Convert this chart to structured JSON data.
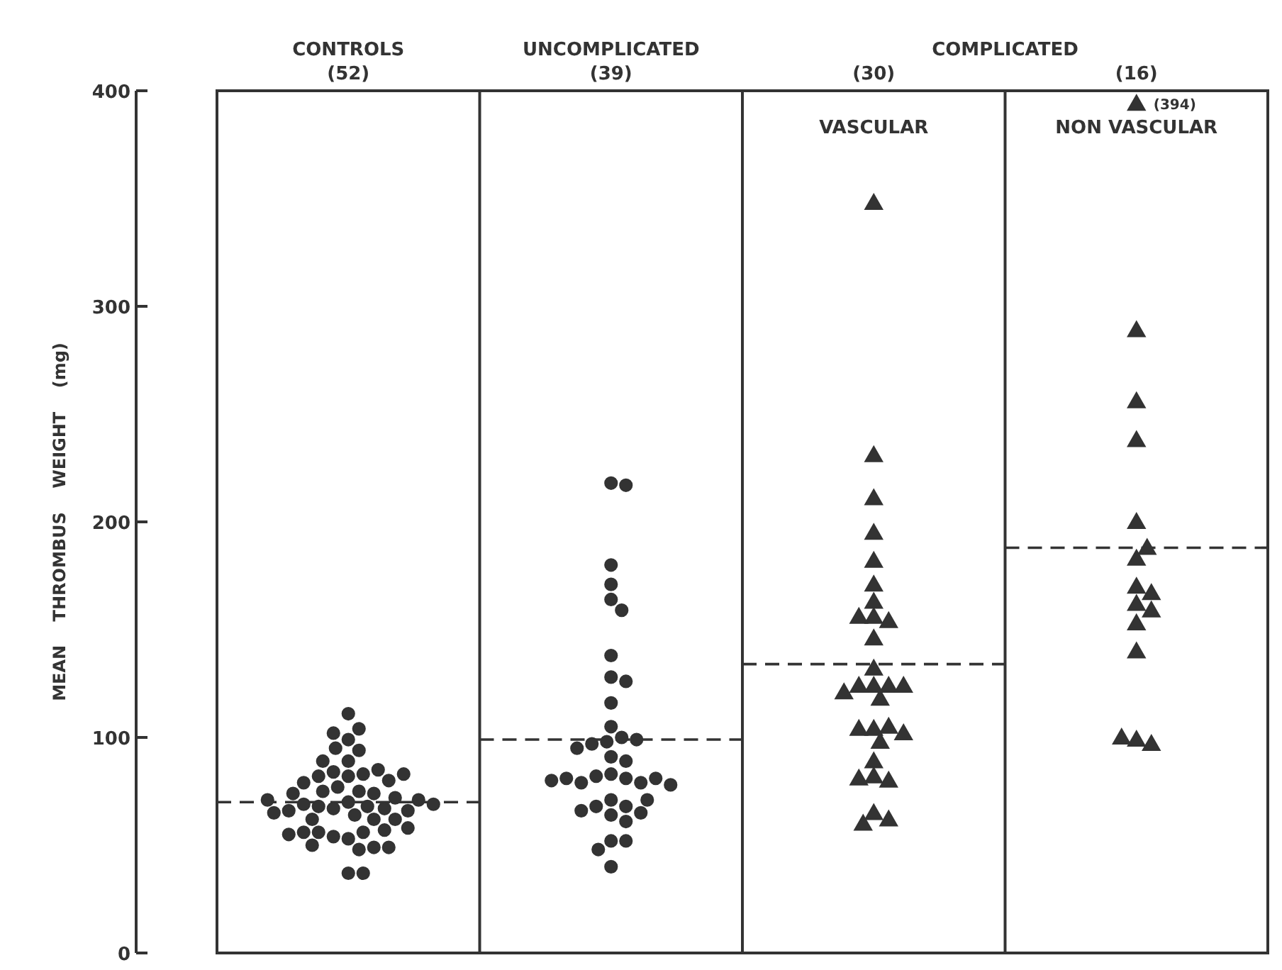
{
  "chart_data": {
    "type": "scatter",
    "categories": [
      "CONTROLS\n(52)",
      "UNCOMPLICATED\n(39)",
      "(30)",
      "(16)"
    ],
    "ylabel": "MEAN    THROMBUS    WEIGHT    (mg)",
    "ylim": [
      0,
      400
    ],
    "yticks": [
      0,
      100,
      200,
      300,
      400
    ],
    "grid": false,
    "annotations": [
      "COMPLICATED",
      "VASCULAR",
      "NON VASCULAR"
    ],
    "ref_lines": [
      {
        "axis": "y",
        "value": 70,
        "line_style": "dashed"
      },
      {
        "axis": "y",
        "value": 99,
        "line_style": "dashed"
      },
      {
        "axis": "y",
        "value": 134,
        "line_style": "dashed"
      },
      {
        "axis": "y",
        "value": 188,
        "line_style": "dashed"
      }
    ],
    "series": [
      {
        "color": "#333333",
        "marker": "circle",
        "x": [
          "CONTROLS\n(52)",
          "CONTROLS\n(52)",
          "CONTROLS\n(52)",
          "CONTROLS\n(52)",
          "CONTROLS\n(52)",
          "CONTROLS\n(52)",
          "CONTROLS\n(52)",
          "CONTROLS\n(52)",
          "CONTROLS\n(52)",
          "CONTROLS\n(52)",
          "CONTROLS\n(52)",
          "CONTROLS\n(52)",
          "CONTROLS\n(52)",
          "CONTROLS\n(52)",
          "CONTROLS\n(52)",
          "CONTROLS\n(52)",
          "CONTROLS\n(52)",
          "CONTROLS\n(52)",
          "CONTROLS\n(52)",
          "CONTROLS\n(52)",
          "CONTROLS\n(52)",
          "CONTROLS\n(52)",
          "CONTROLS\n(52)",
          "CONTROLS\n(52)",
          "CONTROLS\n(52)",
          "CONTROLS\n(52)",
          "CONTROLS\n(52)",
          "CONTROLS\n(52)",
          "CONTROLS\n(52)",
          "CONTROLS\n(52)",
          "CONTROLS\n(52)",
          "CONTROLS\n(52)",
          "CONTROLS\n(52)",
          "CONTROLS\n(52)",
          "CONTROLS\n(52)",
          "CONTROLS\n(52)",
          "CONTROLS\n(52)",
          "CONTROLS\n(52)",
          "CONTROLS\n(52)",
          "CONTROLS\n(52)",
          "CONTROLS\n(52)",
          "CONTROLS\n(52)",
          "CONTROLS\n(52)",
          "CONTROLS\n(52)",
          "CONTROLS\n(52)",
          "CONTROLS\n(52)",
          "CONTROLS\n(52)",
          "CONTROLS\n(52)",
          "CONTROLS\n(52)",
          "CONTROLS\n(52)",
          "CONTROLS\n(52)",
          "CONTROLS\n(52)"
        ],
        "values": [
          70,
          64,
          82,
          67,
          83,
          75,
          68,
          62,
          53,
          84,
          77,
          68,
          62,
          56,
          48,
          99,
          89,
          74,
          67,
          54,
          111,
          104,
          94,
          85,
          75,
          69,
          62,
          56,
          49,
          37,
          102,
          95,
          89,
          82,
          72,
          66,
          57,
          50,
          37,
          80,
          74,
          66,
          56,
          49,
          79,
          71,
          65,
          58,
          83,
          69,
          55,
          71
        ]
      },
      {
        "color": "#333333",
        "marker": "circle",
        "x": [
          "UNCOMPLICATED\n(39)",
          "UNCOMPLICATED\n(39)",
          "UNCOMPLICATED\n(39)",
          "UNCOMPLICATED\n(39)",
          "UNCOMPLICATED\n(39)",
          "UNCOMPLICATED\n(39)",
          "UNCOMPLICATED\n(39)",
          "UNCOMPLICATED\n(39)",
          "UNCOMPLICATED\n(39)",
          "UNCOMPLICATED\n(39)",
          "UNCOMPLICATED\n(39)",
          "UNCOMPLICATED\n(39)",
          "UNCOMPLICATED\n(39)",
          "UNCOMPLICATED\n(39)",
          "UNCOMPLICATED\n(39)",
          "UNCOMPLICATED\n(39)",
          "UNCOMPLICATED\n(39)",
          "UNCOMPLICATED\n(39)",
          "UNCOMPLICATED\n(39)",
          "UNCOMPLICATED\n(39)",
          "UNCOMPLICATED\n(39)",
          "UNCOMPLICATED\n(39)",
          "UNCOMPLICATED\n(39)",
          "UNCOMPLICATED\n(39)",
          "UNCOMPLICATED\n(39)",
          "UNCOMPLICATED\n(39)",
          "UNCOMPLICATED\n(39)",
          "UNCOMPLICATED\n(39)",
          "UNCOMPLICATED\n(39)",
          "UNCOMPLICATED\n(39)",
          "UNCOMPLICATED\n(39)",
          "UNCOMPLICATED\n(39)",
          "UNCOMPLICATED\n(39)",
          "UNCOMPLICATED\n(39)",
          "UNCOMPLICATED\n(39)",
          "UNCOMPLICATED\n(39)",
          "UNCOMPLICATED\n(39)",
          "UNCOMPLICATED\n(39)",
          "UNCOMPLICATED\n(39)"
        ],
        "values": [
          218,
          217,
          180,
          171,
          164,
          159,
          138,
          128,
          126,
          116,
          105,
          100,
          98,
          97,
          99,
          95,
          91,
          89,
          83,
          81,
          82,
          79,
          79,
          81,
          81,
          78,
          80,
          71,
          68,
          68,
          65,
          66,
          71,
          64,
          61,
          52,
          52,
          48,
          40
        ]
      },
      {
        "color": "#333333",
        "marker": "triangle",
        "x": [
          "(30)",
          "(30)",
          "(30)",
          "(30)",
          "(30)",
          "(30)",
          "(30)",
          "(30)",
          "(30)",
          "(30)",
          "(30)",
          "(30)",
          "(30)",
          "(30)",
          "(30)",
          "(30)",
          "(30)",
          "(30)",
          "(30)",
          "(30)",
          "(30)",
          "(30)",
          "(30)",
          "(30)",
          "(30)",
          "(30)",
          "(30)",
          "(30)",
          "(30)",
          "(30)"
        ],
        "values": [
          348,
          231,
          211,
          195,
          182,
          171,
          163,
          156,
          154,
          156,
          146,
          132,
          124,
          124,
          124,
          124,
          121,
          118,
          104,
          105,
          104,
          102,
          98,
          89,
          82,
          80,
          81,
          65,
          62,
          60
        ]
      },
      {
        "color": "#333333",
        "marker": "triangle",
        "x": [
          "(16)",
          "(16)",
          "(16)",
          "(16)",
          "(16)",
          "(16)",
          "(16)",
          "(16)",
          "(16)",
          "(16)",
          "(16)",
          "(16)",
          "(16)",
          "(16)",
          "(16)",
          "(16)"
        ],
        "values": [
          394,
          289,
          256,
          238,
          200,
          183,
          188,
          170,
          167,
          162,
          159,
          153,
          140,
          99,
          97,
          100
        ],
        "value_labels": [
          "(394)",
          null,
          null,
          null,
          null,
          null,
          null,
          null,
          null,
          null,
          null,
          null,
          null,
          null,
          null,
          null
        ]
      }
    ]
  }
}
